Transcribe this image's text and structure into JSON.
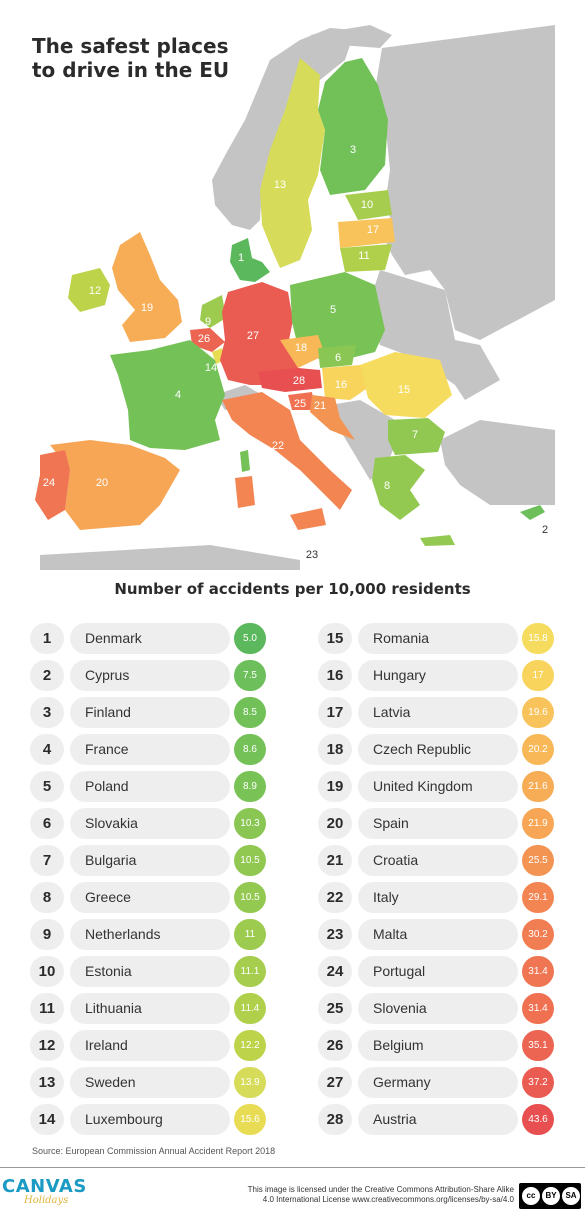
{
  "title": "The safest places\nto drive in the EU",
  "subtitle": "Number of accidents per 10,000 residents",
  "map_labels": [
    {
      "rank": "1",
      "country": "Denmark"
    },
    {
      "rank": "2",
      "country": "Cyprus"
    },
    {
      "rank": "3",
      "country": "Finland"
    },
    {
      "rank": "4",
      "country": "France"
    },
    {
      "rank": "5",
      "country": "Poland"
    },
    {
      "rank": "6",
      "country": "Slovakia"
    },
    {
      "rank": "7",
      "country": "Bulgaria"
    },
    {
      "rank": "8",
      "country": "Greece"
    },
    {
      "rank": "9",
      "country": "Netherlands"
    },
    {
      "rank": "10",
      "country": "Estonia"
    },
    {
      "rank": "11",
      "country": "Lithuania"
    },
    {
      "rank": "12",
      "country": "Ireland"
    },
    {
      "rank": "13",
      "country": "Sweden"
    },
    {
      "rank": "14",
      "country": "Luxembourg"
    },
    {
      "rank": "15",
      "country": "Romania"
    },
    {
      "rank": "16",
      "country": "Hungary"
    },
    {
      "rank": "17",
      "country": "Latvia"
    },
    {
      "rank": "18",
      "country": "Czech Republic"
    },
    {
      "rank": "19",
      "country": "United Kingdom"
    },
    {
      "rank": "20",
      "country": "Spain"
    },
    {
      "rank": "21",
      "country": "Croatia"
    },
    {
      "rank": "22",
      "country": "Italy"
    },
    {
      "rank": "23",
      "country": "Malta"
    },
    {
      "rank": "24",
      "country": "Portugal"
    },
    {
      "rank": "25",
      "country": "Slovenia"
    },
    {
      "rank": "26",
      "country": "Belgium"
    },
    {
      "rank": "27",
      "country": "Germany"
    },
    {
      "rank": "28",
      "country": "Austria"
    }
  ],
  "chart_data": {
    "type": "table",
    "title": "The safest places to drive in the EU",
    "subtitle": "Number of accidents per 10,000 residents",
    "rows": [
      {
        "rank": "1",
        "country": "Denmark",
        "value": "5.0",
        "color": "#5cb85c"
      },
      {
        "rank": "2",
        "country": "Cyprus",
        "value": "7.5",
        "color": "#6cbf5a"
      },
      {
        "rank": "3",
        "country": "Finland",
        "value": "8.5",
        "color": "#72c158"
      },
      {
        "rank": "4",
        "country": "France",
        "value": "8.6",
        "color": "#74c257"
      },
      {
        "rank": "5",
        "country": "Poland",
        "value": "8.9",
        "color": "#79c356"
      },
      {
        "rank": "6",
        "country": "Slovakia",
        "value": "10.3",
        "color": "#8ac653"
      },
      {
        "rank": "7",
        "country": "Bulgaria",
        "value": "10.5",
        "color": "#90c852"
      },
      {
        "rank": "8",
        "country": "Greece",
        "value": "10.5",
        "color": "#94c951"
      },
      {
        "rank": "9",
        "country": "Netherlands",
        "value": "11",
        "color": "#9dcb50"
      },
      {
        "rank": "10",
        "country": "Estonia",
        "value": "11.1",
        "color": "#a6cd4e"
      },
      {
        "rank": "11",
        "country": "Lithuania",
        "value": "11.4",
        "color": "#b0d04c"
      },
      {
        "rank": "12",
        "country": "Ireland",
        "value": "12.2",
        "color": "#bdd34a"
      },
      {
        "rank": "13",
        "country": "Sweden",
        "value": "13.9",
        "color": "#d6db5a"
      },
      {
        "rank": "14",
        "country": "Luxembourg",
        "value": "15.6",
        "color": "#e9dc55"
      },
      {
        "rank": "15",
        "country": "Romania",
        "value": "15.8",
        "color": "#f6dc5e"
      },
      {
        "rank": "16",
        "country": "Hungary",
        "value": "17",
        "color": "#f8d45c"
      },
      {
        "rank": "17",
        "country": "Latvia",
        "value": "19.6",
        "color": "#f8c35a"
      },
      {
        "rank": "18",
        "country": "Czech Republic",
        "value": "20.2",
        "color": "#f8b858"
      },
      {
        "rank": "19",
        "country": "United Kingdom",
        "value": "21.6",
        "color": "#f7ac56"
      },
      {
        "rank": "20",
        "country": "Spain",
        "value": "21.9",
        "color": "#f7a655"
      },
      {
        "rank": "21",
        "country": "Croatia",
        "value": "25.5",
        "color": "#f39453"
      },
      {
        "rank": "22",
        "country": "Italy",
        "value": "29.1",
        "color": "#f28552"
      },
      {
        "rank": "23",
        "country": "Malta",
        "value": "30.2",
        "color": "#f17d52"
      },
      {
        "rank": "24",
        "country": "Portugal",
        "value": "31.4",
        "color": "#f07552"
      },
      {
        "rank": "25",
        "country": "Slovenia",
        "value": "31.4",
        "color": "#ef7152"
      },
      {
        "rank": "26",
        "country": "Belgium",
        "value": "35.1",
        "color": "#ec6452"
      },
      {
        "rank": "27",
        "country": "Germany",
        "value": "37.2",
        "color": "#ea5b52"
      },
      {
        "rank": "28",
        "country": "Austria",
        "value": "43.6",
        "color": "#e84f50"
      }
    ]
  },
  "colors": {
    "land_other": "#c4c4c4",
    "sea": "#ffffff",
    "pill_bg": "#eeeeee",
    "logo_blue": "#1b9ac4",
    "logo_gold": "#e0b43a"
  },
  "source": "Source: European Commission Annual Accident Report 2018",
  "footer": {
    "logo_text": "CANVAS",
    "logo_tagline": "Holidays",
    "license_line1": "This image is licensed under the Creative Commons Attribution-Share Alike",
    "license_line2": "4.0 International License www.creativecommons.org/licenses/by-sa/4.0",
    "cc_labels": [
      "cc",
      "BY",
      "SA"
    ]
  }
}
